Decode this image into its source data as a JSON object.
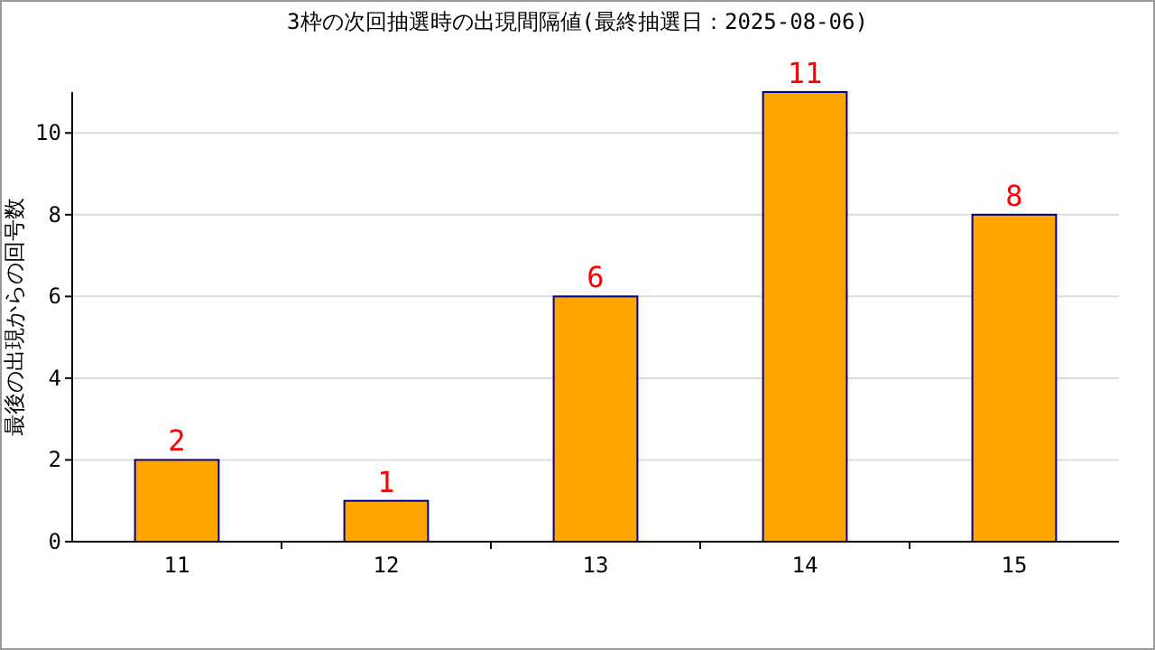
{
  "chart_data": {
    "type": "bar",
    "title": "3枠の次回抽選時の出現間隔値(最終抽選日：2025-08-06)",
    "ylabel": "最後の出現からの回号数",
    "categories": [
      "11",
      "12",
      "13",
      "14",
      "15"
    ],
    "values": [
      2,
      1,
      6,
      11,
      8
    ],
    "color": "#ffa500",
    "ylim": [
      0,
      11
    ],
    "yticks": [
      0,
      2,
      4,
      6,
      8,
      10
    ],
    "grid": "y",
    "data_labels": true
  }
}
